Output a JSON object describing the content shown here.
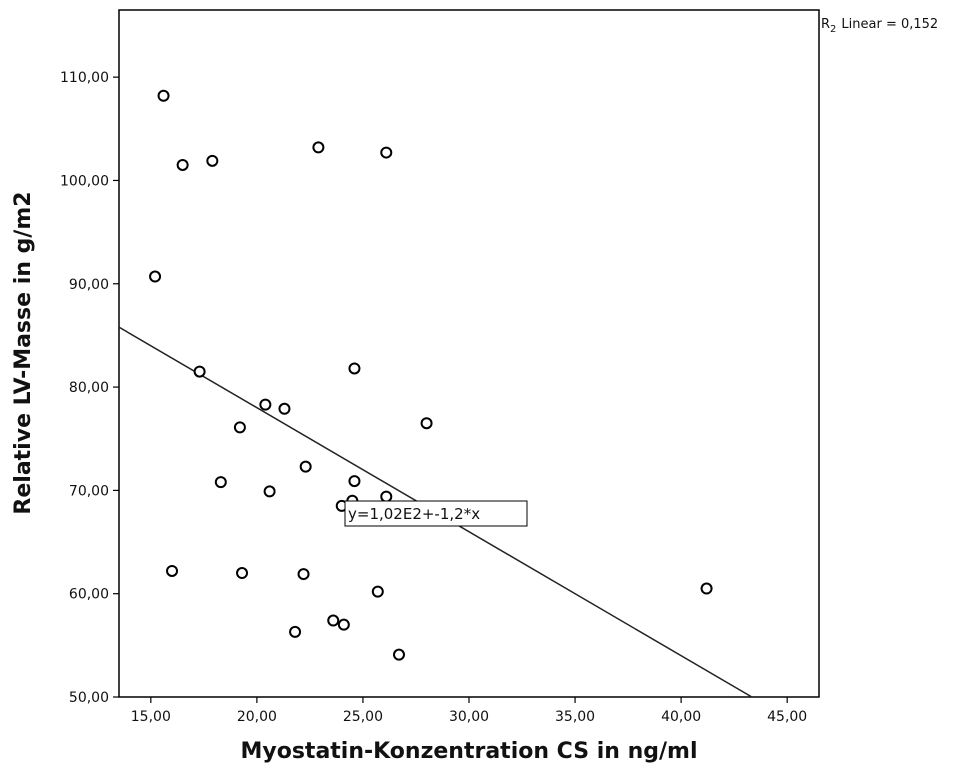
{
  "chart_data": {
    "type": "scatter",
    "title": "",
    "xlabel": "Myostatin-Konzentration CS in ng/ml",
    "ylabel": "Relative LV-Masse in g/m2",
    "xlim": [
      13.5,
      46.5
    ],
    "ylim": [
      50,
      116.5
    ],
    "xticks": [
      15,
      20,
      25,
      30,
      35,
      40,
      45
    ],
    "xtick_labels": [
      "15,00",
      "20,00",
      "25,00",
      "30,00",
      "35,00",
      "40,00",
      "45,00"
    ],
    "yticks": [
      50,
      60,
      70,
      80,
      90,
      100,
      110
    ],
    "ytick_labels": [
      "50,00",
      "60,00",
      "70,00",
      "80,00",
      "90,00",
      "100,00",
      "110,00"
    ],
    "grid": false,
    "points": [
      {
        "x": 15.6,
        "y": 108.2
      },
      {
        "x": 16.5,
        "y": 101.5
      },
      {
        "x": 17.9,
        "y": 101.9
      },
      {
        "x": 22.9,
        "y": 103.2
      },
      {
        "x": 26.1,
        "y": 102.7
      },
      {
        "x": 15.2,
        "y": 90.7
      },
      {
        "x": 17.3,
        "y": 81.5
      },
      {
        "x": 24.6,
        "y": 81.8
      },
      {
        "x": 20.4,
        "y": 78.3
      },
      {
        "x": 21.3,
        "y": 77.9
      },
      {
        "x": 19.2,
        "y": 76.1
      },
      {
        "x": 28.0,
        "y": 76.5
      },
      {
        "x": 22.3,
        "y": 72.3
      },
      {
        "x": 24.6,
        "y": 70.9
      },
      {
        "x": 18.3,
        "y": 70.8
      },
      {
        "x": 20.6,
        "y": 69.9
      },
      {
        "x": 26.1,
        "y": 69.4
      },
      {
        "x": 24.5,
        "y": 69.0
      },
      {
        "x": 24.0,
        "y": 68.5
      },
      {
        "x": 16.0,
        "y": 62.2
      },
      {
        "x": 19.3,
        "y": 62.0
      },
      {
        "x": 22.2,
        "y": 61.9
      },
      {
        "x": 25.7,
        "y": 60.2
      },
      {
        "x": 41.2,
        "y": 60.5
      },
      {
        "x": 21.8,
        "y": 56.3
      },
      {
        "x": 23.6,
        "y": 57.4
      },
      {
        "x": 24.1,
        "y": 57.0
      },
      {
        "x": 26.7,
        "y": 54.1
      }
    ],
    "fit_line": {
      "intercept": 102,
      "slope": -1.2
    },
    "fit_equation": "y=1,02E2+-1,2*x",
    "r2_label": "R",
    "r2_subscript": "2",
    "r2_text": "Linear = 0,152"
  }
}
